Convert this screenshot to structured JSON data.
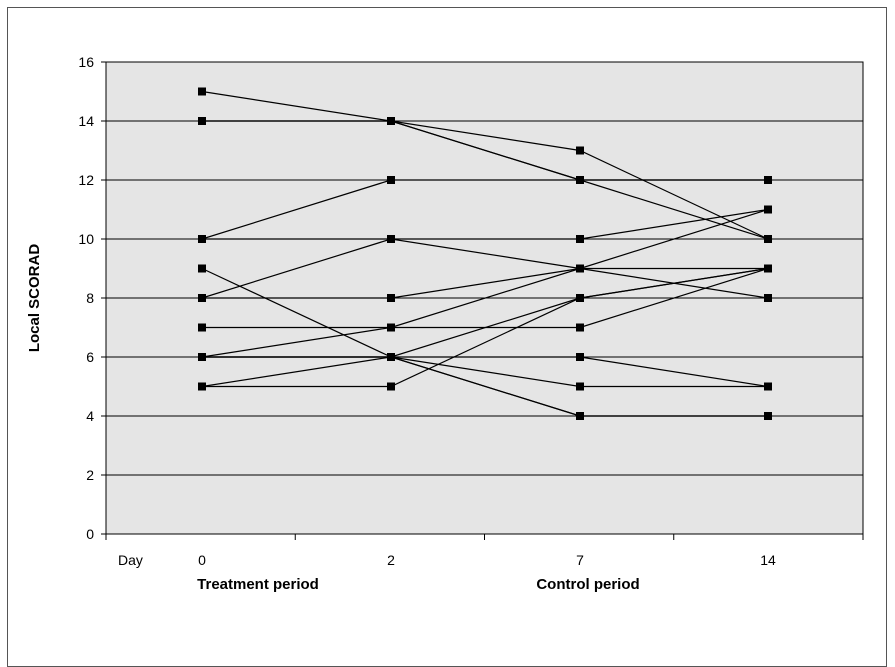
{
  "chart_data": {
    "type": "line",
    "ylabel": "Local SCORAD",
    "x_axis_prefix": "Day",
    "categories": [
      "0",
      "2",
      "7",
      "14"
    ],
    "period_labels": [
      "Treatment period",
      "Control period"
    ],
    "ylim": [
      0,
      16
    ],
    "yticks": [
      0,
      2,
      4,
      6,
      8,
      10,
      12,
      14,
      16
    ],
    "grid": true,
    "legend": "none",
    "plot_background": "#e5e5e5",
    "line_color": "#000000",
    "series": [
      {
        "values": [
          15,
          14,
          12,
          12
        ]
      },
      {
        "values": [
          14,
          14,
          13,
          10
        ]
      },
      {
        "values": [
          14,
          14,
          12,
          10
        ]
      },
      {
        "values": [
          10,
          12,
          12,
          12
        ]
      },
      {
        "values": [
          10,
          10,
          10,
          11
        ]
      },
      {
        "values": [
          8,
          10,
          9,
          8
        ]
      },
      {
        "values": [
          8,
          8,
          9,
          11
        ]
      },
      {
        "values": [
          9,
          6,
          4,
          4
        ]
      },
      {
        "values": [
          7,
          7,
          7,
          9
        ]
      },
      {
        "values": [
          6,
          7,
          9,
          9
        ]
      },
      {
        "values": [
          6,
          6,
          6,
          5
        ]
      },
      {
        "values": [
          6,
          6,
          5,
          5
        ]
      },
      {
        "values": [
          5,
          6,
          4,
          4
        ]
      },
      {
        "values": [
          5,
          5,
          8,
          9
        ]
      },
      {
        "values": [
          6,
          6,
          8,
          9
        ]
      }
    ]
  }
}
